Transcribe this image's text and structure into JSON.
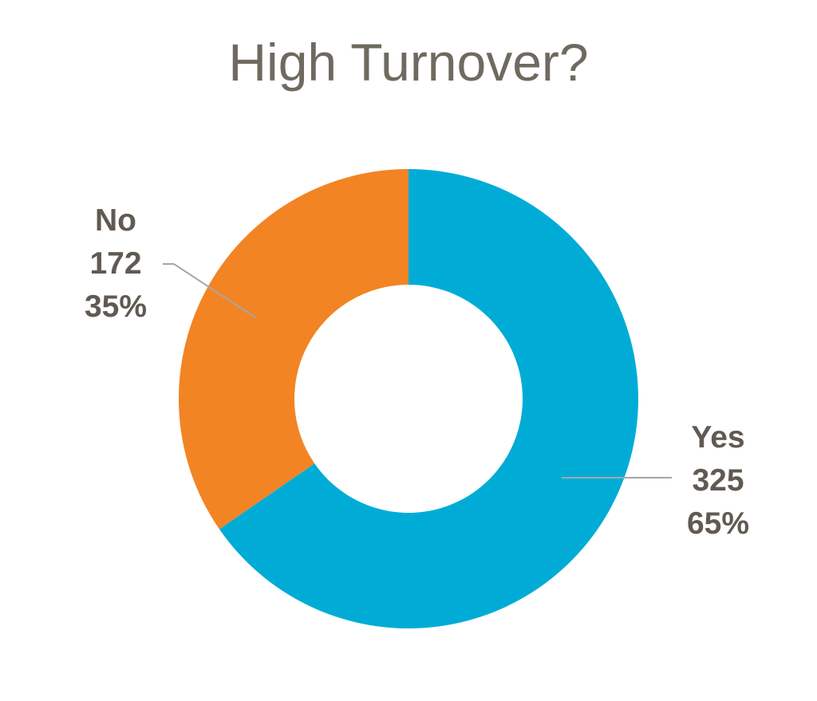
{
  "chart_data": {
    "type": "pie",
    "donut": true,
    "title": "High Turnover?",
    "slices": [
      {
        "label": "Yes",
        "value": 325,
        "percent": "65%",
        "color": "#00acd6"
      },
      {
        "label": "No",
        "value": 172,
        "percent": "35%",
        "color": "#f28424"
      }
    ],
    "legend": "none",
    "data_labels": "outside with leader lines (category, value, percent)"
  },
  "labels": {
    "yes": {
      "name": "Yes",
      "value": "325",
      "percent": "65%"
    },
    "no": {
      "name": "No",
      "value": "172",
      "percent": "35%"
    }
  }
}
